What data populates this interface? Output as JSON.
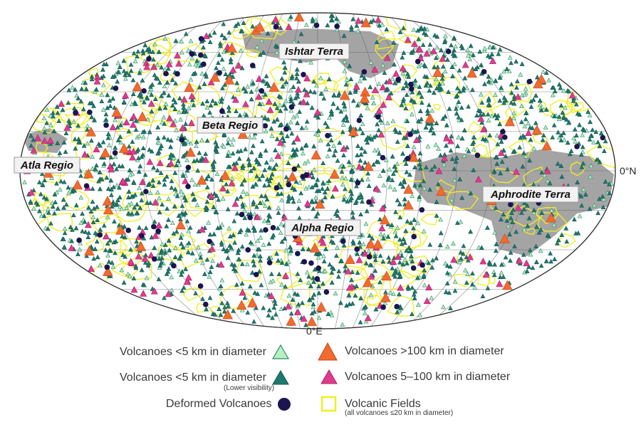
{
  "map": {
    "regions": [
      {
        "name": "Ishtar Terra"
      },
      {
        "name": "Beta Regio"
      },
      {
        "name": "Atla Regio"
      },
      {
        "name": "Aphrodite Terra"
      },
      {
        "name": "Alpha Regio"
      }
    ],
    "axis": {
      "equator_label": "0°N",
      "meridian_label": "0°E"
    }
  },
  "colors": {
    "small_volcano": "#b7f0c0",
    "small_volcano_low_vis": "#1e7a6e",
    "large_volcano": "#f26a2e",
    "medium_volcano": "#e03a8c",
    "deformed_volcano": "#1a1550",
    "volcanic_field": "#f0ef20",
    "highland": "#9a9a9a"
  },
  "legend": {
    "left": [
      {
        "label": "Volcanoes <5 km in diameter",
        "sub": "",
        "icon": "triangle-light-green-icon"
      },
      {
        "label": "Volcanoes <5 km in diameter",
        "sub": "(Lower visibility)",
        "icon": "triangle-teal-icon"
      },
      {
        "label": "Deformed Volcanoes",
        "sub": "",
        "icon": "circle-navy-icon"
      }
    ],
    "right": [
      {
        "label": "Volcanoes >100 km in diameter",
        "sub": "",
        "icon": "triangle-orange-icon"
      },
      {
        "label": "Volcanoes 5–100 km in diameter",
        "sub": "",
        "icon": "triangle-magenta-icon"
      },
      {
        "label": "Volcanic Fields",
        "sub": "(all volcanoes ≤20 km in diameter)",
        "icon": "yellow-outline-icon"
      }
    ]
  }
}
